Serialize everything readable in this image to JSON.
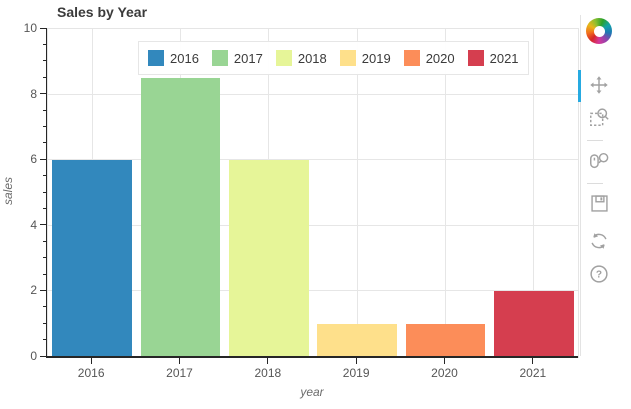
{
  "title": "Sales by Year",
  "chart_data": {
    "type": "bar",
    "title": "Sales by Year",
    "xlabel": "year",
    "ylabel": "sales",
    "categories": [
      "2016",
      "2017",
      "2018",
      "2019",
      "2020",
      "2021"
    ],
    "values": [
      6,
      8.5,
      6,
      1,
      1,
      2
    ],
    "colors": [
      "#3288bd",
      "#99d594",
      "#e6f598",
      "#fee08b",
      "#fc8d59",
      "#d53e4f"
    ],
    "ylim": [
      0,
      10
    ],
    "yticks": [
      0,
      2,
      4,
      6,
      8,
      10
    ],
    "y_minor_tick_step": 0.5,
    "grid": true,
    "legend_position": "top-center",
    "legend": [
      "2016",
      "2017",
      "2018",
      "2019",
      "2020",
      "2021"
    ]
  },
  "toolbar": {
    "logo_name": "bokeh-logo",
    "active_color": "#26aae1",
    "tools": [
      {
        "name": "pan",
        "active": true
      },
      {
        "name": "box-zoom",
        "active": false
      },
      {
        "name": "wheel-zoom",
        "active": false
      },
      {
        "name": "save",
        "active": false
      },
      {
        "name": "reset",
        "active": false
      },
      {
        "name": "help",
        "active": false
      }
    ]
  }
}
